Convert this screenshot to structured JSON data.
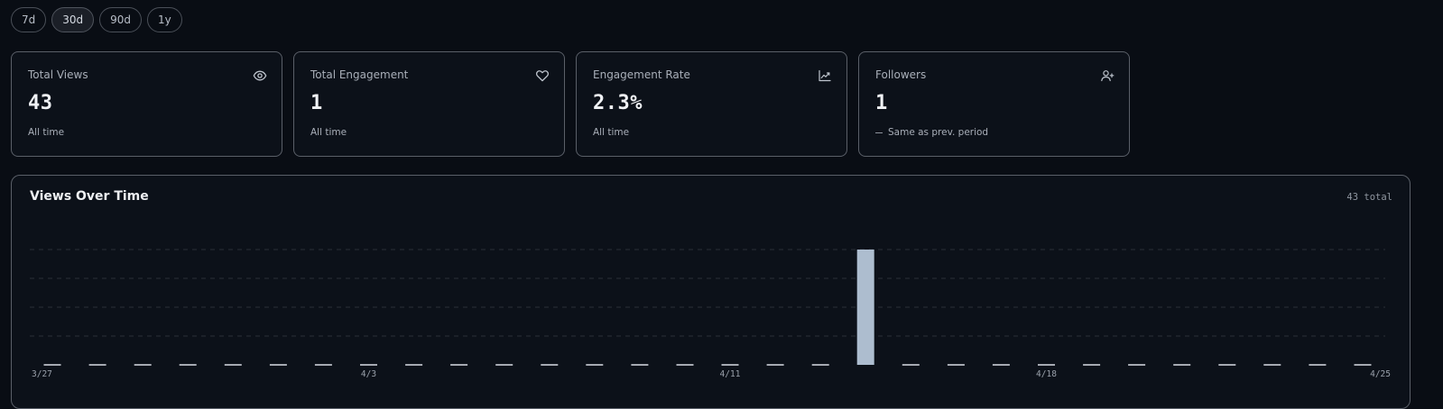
{
  "range_selector": {
    "options": [
      "7d",
      "30d",
      "90d",
      "1y"
    ],
    "selected": "30d"
  },
  "stats": [
    {
      "label": "Total Views",
      "value": "43",
      "subtitle": "All time",
      "icon": "eye-icon"
    },
    {
      "label": "Total Engagement",
      "value": "1",
      "subtitle": "All time",
      "icon": "heart-icon"
    },
    {
      "label": "Engagement Rate",
      "value": "2.3%",
      "subtitle": "All time",
      "icon": "trending-up-icon"
    },
    {
      "label": "Followers",
      "value": "1",
      "subtitle": "Same as prev. period",
      "icon": "user-plus-icon",
      "trend": "neutral"
    }
  ],
  "chart": {
    "title": "Views Over Time",
    "total_label": "43 total"
  },
  "colors": {
    "background": "#090d14",
    "card": "#0c1119",
    "border": "#5a5f68",
    "bar": "#adbdcf",
    "grid": "#2a2f38"
  },
  "chart_data": {
    "type": "bar",
    "x": [
      "3/27",
      "3/28",
      "3/29",
      "3/30",
      "3/31",
      "4/1",
      "4/2",
      "4/3",
      "4/4",
      "4/5",
      "4/6",
      "4/7",
      "4/8",
      "4/9",
      "4/10",
      "4/11",
      "4/12",
      "4/13",
      "4/14",
      "4/15",
      "4/16",
      "4/17",
      "4/18",
      "4/19",
      "4/20",
      "4/21",
      "4/22",
      "4/23",
      "4/24",
      "4/25"
    ],
    "values": [
      0,
      0,
      0,
      0,
      0,
      0,
      0,
      0,
      0,
      0,
      0,
      0,
      0,
      0,
      0,
      0,
      0,
      0,
      43,
      0,
      0,
      0,
      0,
      0,
      0,
      0,
      0,
      0,
      0,
      0
    ],
    "tick_labels": [
      "3/27",
      "4/3",
      "4/11",
      "4/18",
      "4/25"
    ],
    "ylim": [
      0,
      43
    ],
    "grid": true,
    "title": "Views Over Time"
  }
}
